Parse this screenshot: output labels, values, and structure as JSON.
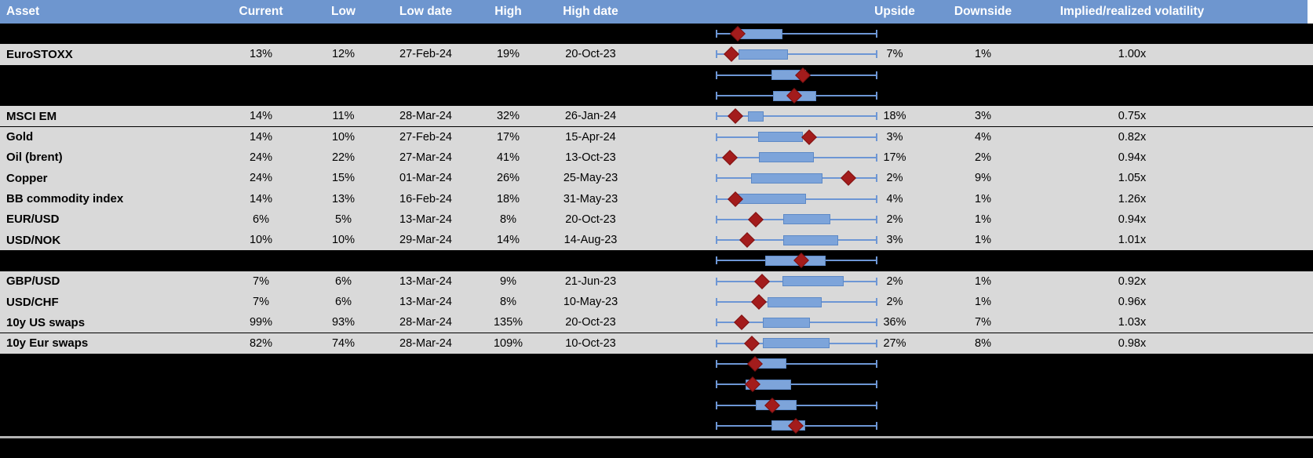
{
  "header": {
    "columns": {
      "asset": "Asset",
      "current": "Current",
      "low": "Low",
      "low_date": "Low date",
      "high": "High",
      "high_date": "High date",
      "upside": "Upside",
      "downside": "Downside",
      "implied": "Implied/realized volatility"
    }
  },
  "colors": {
    "header_blue": "#6e96cf",
    "row_gray": "#d9d9d9",
    "background_black": "#000000",
    "box_fill": "#7da4da",
    "box_border": "#5d89c6",
    "whisker_blue": "#6d96d4",
    "marker_red": "#a31c1c",
    "separator_gray": "#b3b3b3",
    "header_text": "#ffffff"
  },
  "rows": [
    {
      "type": "blank",
      "plot": {
        "box_start": 14.7,
        "box_end": 41.2,
        "marker": 13.2
      }
    },
    {
      "type": "asset",
      "name": "EuroSTOXX",
      "current": "13%",
      "low": "12%",
      "low_date": "27-Feb-24",
      "high": "19%",
      "high_date": "20-Oct-23",
      "upside": "7%",
      "downside": "1%",
      "implied": "1.00x",
      "plot": {
        "box_start": 13.7,
        "box_end": 44.6,
        "marker": 9.3
      }
    },
    {
      "type": "blank",
      "plot": {
        "box_start": 34.3,
        "box_end": 55.9,
        "marker": 53.9
      }
    },
    {
      "type": "blank",
      "plot": {
        "box_start": 35.3,
        "box_end": 62.3,
        "marker": 48.5
      }
    },
    {
      "type": "asset",
      "name": "MSCI EM",
      "current": "14%",
      "low": "11%",
      "low_date": "28-Mar-24",
      "high": "32%",
      "high_date": "26-Jan-24",
      "upside": "18%",
      "downside": "3%",
      "implied": "0.75x",
      "plot": {
        "box_start": 19.6,
        "box_end": 29.4,
        "marker": 11.8
      }
    },
    {
      "type": "asset",
      "name": "Gold",
      "current": "14%",
      "low": "10%",
      "low_date": "27-Feb-24",
      "high": "17%",
      "high_date": "15-Apr-24",
      "upside": "3%",
      "downside": "4%",
      "implied": "0.82x",
      "plot": {
        "box_start": 26.0,
        "box_end": 53.9,
        "marker": 57.8
      }
    },
    {
      "type": "asset",
      "name": "Oil (brent)",
      "current": "24%",
      "low": "22%",
      "low_date": "27-Mar-24",
      "high": "41%",
      "high_date": "13-Oct-23",
      "upside": "17%",
      "downside": "2%",
      "implied": "0.94x",
      "plot": {
        "box_start": 26.5,
        "box_end": 60.8,
        "marker": 8.3
      }
    },
    {
      "type": "asset",
      "name": "Copper",
      "current": "24%",
      "low": "15%",
      "low_date": "01-Mar-24",
      "high": "26%",
      "high_date": "25-May-23",
      "upside": "2%",
      "downside": "9%",
      "implied": "1.05x",
      "plot": {
        "box_start": 21.6,
        "box_end": 66.2,
        "marker": 82.4
      }
    },
    {
      "type": "asset",
      "name": "BB commodity index",
      "current": "14%",
      "low": "13%",
      "low_date": "16-Feb-24",
      "high": "18%",
      "high_date": "31-May-23",
      "upside": "4%",
      "downside": "1%",
      "implied": "1.26x",
      "plot": {
        "box_start": 12.3,
        "box_end": 55.9,
        "marker": 11.8
      }
    },
    {
      "type": "asset",
      "name": "EUR/USD",
      "current": "6%",
      "low": "5%",
      "low_date": "13-Mar-24",
      "high": "8%",
      "high_date": "20-Oct-23",
      "upside": "2%",
      "downside": "1%",
      "implied": "0.94x",
      "plot": {
        "box_start": 41.7,
        "box_end": 71.1,
        "marker": 24.5
      }
    },
    {
      "type": "asset",
      "name": "USD/NOK",
      "current": "10%",
      "low": "10%",
      "low_date": "29-Mar-24",
      "high": "14%",
      "high_date": "14-Aug-23",
      "upside": "3%",
      "downside": "1%",
      "implied": "1.01x",
      "plot": {
        "box_start": 41.7,
        "box_end": 76.0,
        "marker": 19.1
      }
    },
    {
      "type": "blank",
      "plot": {
        "box_start": 30.4,
        "box_end": 68.1,
        "marker": 52.9
      }
    },
    {
      "type": "asset",
      "name": "GBP/USD",
      "current": "7%",
      "low": "6%",
      "low_date": "13-Mar-24",
      "high": "9%",
      "high_date": "21-Jun-23",
      "upside": "2%",
      "downside": "1%",
      "implied": "0.92x",
      "plot": {
        "box_start": 41.2,
        "box_end": 79.4,
        "marker": 28.4
      }
    },
    {
      "type": "asset",
      "name": "USD/CHF",
      "current": "7%",
      "low": "6%",
      "low_date": "13-Mar-24",
      "high": "8%",
      "high_date": "10-May-23",
      "upside": "2%",
      "downside": "1%",
      "implied": "0.96x",
      "plot": {
        "box_start": 31.9,
        "box_end": 65.7,
        "marker": 26.5
      }
    },
    {
      "type": "asset",
      "name": "10y US swaps",
      "current": "99%",
      "low": "93%",
      "low_date": "28-Mar-24",
      "high": "135%",
      "high_date": "20-Oct-23",
      "upside": "36%",
      "downside": "7%",
      "implied": "1.03x",
      "plot": {
        "box_start": 28.9,
        "box_end": 58.3,
        "marker": 15.7
      }
    },
    {
      "type": "asset",
      "name": "10y Eur swaps",
      "current": "82%",
      "low": "74%",
      "low_date": "28-Mar-24",
      "high": "109%",
      "high_date": "10-Oct-23",
      "upside": "27%",
      "downside": "8%",
      "implied": "0.98x",
      "plot": {
        "box_start": 28.9,
        "box_end": 70.6,
        "marker": 22.1
      }
    },
    {
      "type": "blank",
      "plot": {
        "box_start": 22.5,
        "box_end": 43.6,
        "marker": 24.0
      }
    },
    {
      "type": "blank",
      "plot": {
        "box_start": 18.1,
        "box_end": 46.6,
        "marker": 22.5
      }
    },
    {
      "type": "blank",
      "plot": {
        "box_start": 24.5,
        "box_end": 50.0,
        "marker": 34.8
      }
    },
    {
      "type": "blank",
      "plot": {
        "box_start": 34.3,
        "box_end": 55.4,
        "marker": 49.5
      }
    }
  ]
}
